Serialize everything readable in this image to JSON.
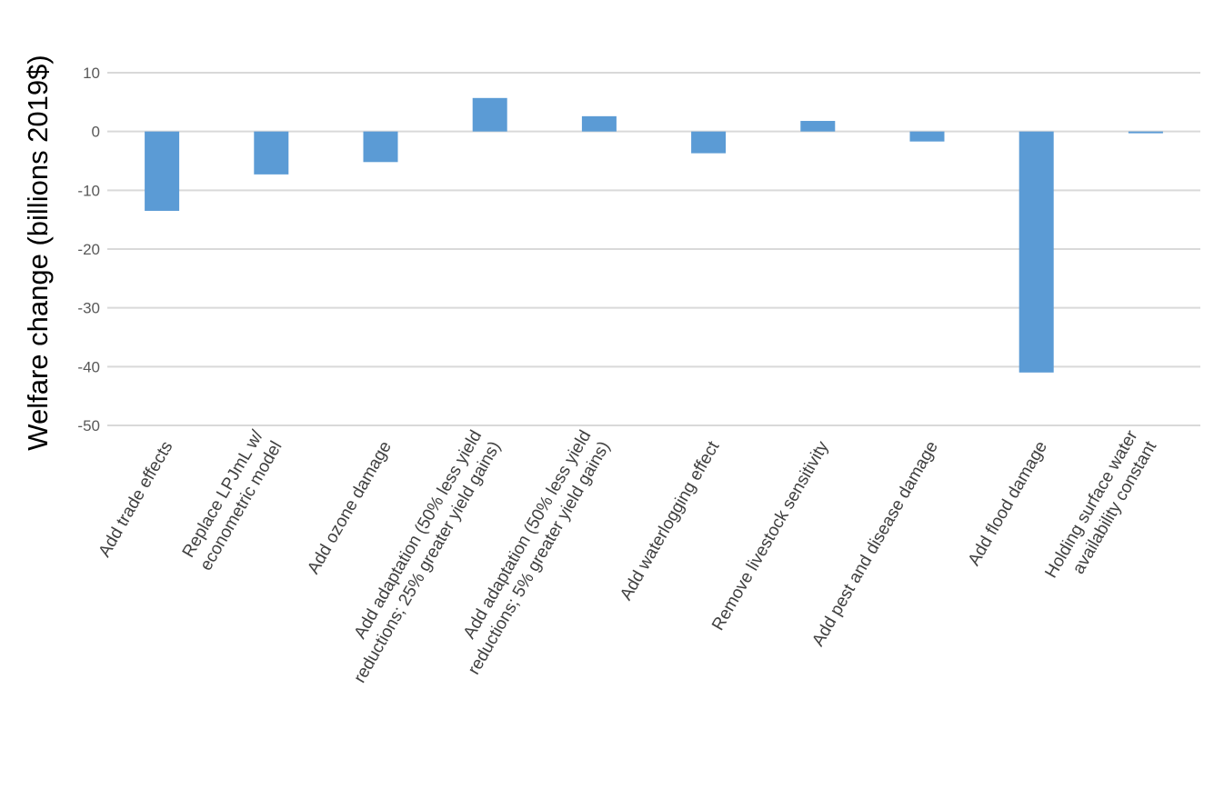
{
  "chart_data": {
    "type": "bar",
    "title": "",
    "xlabel": "",
    "ylabel": "Welfare change (billions 2019$)",
    "ylim": [
      -50,
      10
    ],
    "yticks": [
      10,
      0,
      -10,
      -20,
      -30,
      -40,
      -50
    ],
    "grid": true,
    "bar_color": "#5B9BD5",
    "categories": [
      "Add trade effects",
      "Replace LPJmL w/ econometric model",
      "Add ozone damage",
      "Add adaptation (50% less yield reductions; 25% greater yield gains)",
      "Add adaptation (50% less yield reductions; 5% greater yield gains)",
      "Add waterlogging effect",
      "Remove livestock sensitivity",
      "Add pest and disease damage",
      "Add flood damage",
      "Holding surface water availability constant"
    ],
    "category_lines": [
      [
        "Add trade effects"
      ],
      [
        "Replace LPJmL w/",
        "econometric model"
      ],
      [
        "Add ozone damage"
      ],
      [
        "Add adaptation (50% less yield",
        "reductions; 25% greater yield gains)"
      ],
      [
        "Add adaptation (50% less yield",
        "reductions; 5% greater yield gains)"
      ],
      [
        "Add waterlogging effect"
      ],
      [
        "Remove livestock sensitivity"
      ],
      [
        "Add pest and disease damage"
      ],
      [
        "Add flood damage"
      ],
      [
        "Holding surface water",
        "availability constant"
      ]
    ],
    "values": [
      -13.5,
      -7.3,
      -5.2,
      5.7,
      2.6,
      -3.7,
      1.8,
      -1.7,
      -41.0,
      -0.3
    ]
  }
}
